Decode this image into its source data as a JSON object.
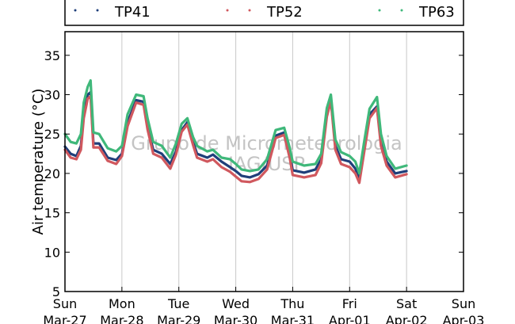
{
  "chart_data": {
    "type": "line",
    "ylabel": "Air temperature (°C)",
    "ylim": [
      5,
      38
    ],
    "y_ticks": [
      "5",
      "10",
      "15",
      "20",
      "25",
      "30",
      "35"
    ],
    "x_tick_labels": [
      {
        "day": "Sun",
        "date": "Mar-27"
      },
      {
        "day": "Mon",
        "date": "Mar-28"
      },
      {
        "day": "Tue",
        "date": "Mar-29"
      },
      {
        "day": "Wed",
        "date": "Mar-30"
      },
      {
        "day": "Thu",
        "date": "Mar-31"
      },
      {
        "day": "Fri",
        "date": "Apr-01"
      },
      {
        "day": "Sat",
        "date": "Apr-02"
      },
      {
        "day": "Sun",
        "date": "Apr-03"
      }
    ],
    "xlim_days": [
      0,
      7
    ],
    "grid": "vertical",
    "legend_placement": "top",
    "watermark": [
      "Grupo de Micrometeorologia",
      "IAG/USP"
    ],
    "series": [
      {
        "name": "TP41",
        "color": "#1f3f7a",
        "points": [
          [
            0.0,
            23.4
          ],
          [
            0.1,
            22.5
          ],
          [
            0.2,
            22.2
          ],
          [
            0.28,
            23.5
          ],
          [
            0.33,
            27.5
          ],
          [
            0.4,
            30.0
          ],
          [
            0.45,
            30.3
          ],
          [
            0.5,
            23.8
          ],
          [
            0.6,
            23.8
          ],
          [
            0.75,
            22.0
          ],
          [
            0.9,
            21.7
          ],
          [
            1.0,
            22.5
          ],
          [
            1.1,
            26.5
          ],
          [
            1.25,
            29.3
          ],
          [
            1.38,
            29.1
          ],
          [
            1.45,
            26.0
          ],
          [
            1.55,
            23.0
          ],
          [
            1.7,
            22.5
          ],
          [
            1.85,
            21.2
          ],
          [
            1.95,
            22.8
          ],
          [
            2.05,
            25.5
          ],
          [
            2.15,
            26.5
          ],
          [
            2.25,
            24.0
          ],
          [
            2.32,
            22.5
          ],
          [
            2.5,
            22.0
          ],
          [
            2.6,
            22.4
          ],
          [
            2.75,
            21.5
          ],
          [
            2.9,
            20.8
          ],
          [
            3.0,
            20.3
          ],
          [
            3.1,
            19.7
          ],
          [
            3.25,
            19.5
          ],
          [
            3.4,
            19.9
          ],
          [
            3.55,
            21.0
          ],
          [
            3.7,
            24.8
          ],
          [
            3.85,
            25.2
          ],
          [
            3.95,
            22.5
          ],
          [
            4.0,
            20.4
          ],
          [
            4.2,
            20.1
          ],
          [
            4.4,
            20.5
          ],
          [
            4.5,
            21.8
          ],
          [
            4.6,
            27.5
          ],
          [
            4.67,
            29.4
          ],
          [
            4.75,
            23.5
          ],
          [
            4.85,
            21.8
          ],
          [
            5.0,
            21.5
          ],
          [
            5.1,
            20.6
          ],
          [
            5.17,
            19.3
          ],
          [
            5.25,
            23.0
          ],
          [
            5.35,
            27.5
          ],
          [
            5.48,
            28.5
          ],
          [
            5.55,
            24.0
          ],
          [
            5.65,
            21.5
          ],
          [
            5.8,
            20.0
          ],
          [
            6.0,
            20.3
          ]
        ]
      },
      {
        "name": "TP52",
        "color": "#d0585e",
        "points": [
          [
            0.0,
            23.0
          ],
          [
            0.1,
            22.0
          ],
          [
            0.2,
            21.8
          ],
          [
            0.28,
            23.0
          ],
          [
            0.33,
            27.0
          ],
          [
            0.4,
            29.5
          ],
          [
            0.45,
            29.8
          ],
          [
            0.5,
            23.3
          ],
          [
            0.6,
            23.3
          ],
          [
            0.75,
            21.6
          ],
          [
            0.9,
            21.2
          ],
          [
            1.0,
            22.2
          ],
          [
            1.1,
            26.0
          ],
          [
            1.25,
            29.0
          ],
          [
            1.38,
            28.7
          ],
          [
            1.45,
            25.6
          ],
          [
            1.55,
            22.5
          ],
          [
            1.7,
            22.0
          ],
          [
            1.85,
            20.6
          ],
          [
            1.95,
            22.4
          ],
          [
            2.05,
            25.3
          ],
          [
            2.15,
            26.2
          ],
          [
            2.25,
            23.6
          ],
          [
            2.32,
            22.0
          ],
          [
            2.5,
            21.5
          ],
          [
            2.6,
            21.8
          ],
          [
            2.75,
            20.8
          ],
          [
            2.9,
            20.2
          ],
          [
            3.0,
            19.6
          ],
          [
            3.1,
            19.0
          ],
          [
            3.25,
            18.9
          ],
          [
            3.4,
            19.3
          ],
          [
            3.55,
            20.5
          ],
          [
            3.7,
            24.5
          ],
          [
            3.85,
            24.9
          ],
          [
            3.95,
            21.9
          ],
          [
            4.0,
            19.8
          ],
          [
            4.2,
            19.5
          ],
          [
            4.4,
            19.8
          ],
          [
            4.5,
            21.3
          ],
          [
            4.6,
            27.2
          ],
          [
            4.67,
            29.2
          ],
          [
            4.75,
            23.0
          ],
          [
            4.85,
            21.2
          ],
          [
            5.0,
            20.8
          ],
          [
            5.1,
            20.0
          ],
          [
            5.17,
            18.8
          ],
          [
            5.25,
            22.5
          ],
          [
            5.35,
            27.0
          ],
          [
            5.48,
            28.3
          ],
          [
            5.55,
            23.5
          ],
          [
            5.65,
            21.0
          ],
          [
            5.8,
            19.5
          ],
          [
            6.0,
            19.9
          ]
        ]
      },
      {
        "name": "TP63",
        "color": "#3fb87a",
        "points": [
          [
            0.0,
            25.0
          ],
          [
            0.1,
            24.0
          ],
          [
            0.2,
            23.8
          ],
          [
            0.28,
            25.0
          ],
          [
            0.33,
            29.0
          ],
          [
            0.4,
            31.0
          ],
          [
            0.45,
            31.8
          ],
          [
            0.5,
            25.2
          ],
          [
            0.6,
            25.0
          ],
          [
            0.75,
            23.2
          ],
          [
            0.9,
            22.8
          ],
          [
            1.0,
            23.5
          ],
          [
            1.1,
            27.5
          ],
          [
            1.25,
            30.0
          ],
          [
            1.38,
            29.8
          ],
          [
            1.45,
            27.0
          ],
          [
            1.55,
            24.0
          ],
          [
            1.7,
            23.5
          ],
          [
            1.85,
            22.0
          ],
          [
            1.95,
            23.8
          ],
          [
            2.05,
            26.3
          ],
          [
            2.15,
            27.0
          ],
          [
            2.25,
            24.6
          ],
          [
            2.32,
            23.5
          ],
          [
            2.5,
            22.8
          ],
          [
            2.6,
            23.0
          ],
          [
            2.75,
            22.0
          ],
          [
            2.9,
            21.8
          ],
          [
            3.0,
            21.2
          ],
          [
            3.1,
            20.5
          ],
          [
            3.25,
            20.3
          ],
          [
            3.4,
            20.5
          ],
          [
            3.55,
            21.8
          ],
          [
            3.7,
            25.5
          ],
          [
            3.85,
            25.8
          ],
          [
            3.95,
            23.2
          ],
          [
            4.0,
            21.5
          ],
          [
            4.2,
            21.0
          ],
          [
            4.4,
            21.2
          ],
          [
            4.5,
            22.5
          ],
          [
            4.6,
            28.3
          ],
          [
            4.67,
            30.0
          ],
          [
            4.75,
            24.3
          ],
          [
            4.85,
            22.7
          ],
          [
            5.0,
            22.2
          ],
          [
            5.1,
            21.5
          ],
          [
            5.17,
            20.0
          ],
          [
            5.25,
            23.8
          ],
          [
            5.35,
            28.2
          ],
          [
            5.48,
            29.7
          ],
          [
            5.55,
            25.0
          ],
          [
            5.65,
            22.2
          ],
          [
            5.8,
            20.6
          ],
          [
            6.0,
            21.0
          ]
        ]
      }
    ]
  }
}
